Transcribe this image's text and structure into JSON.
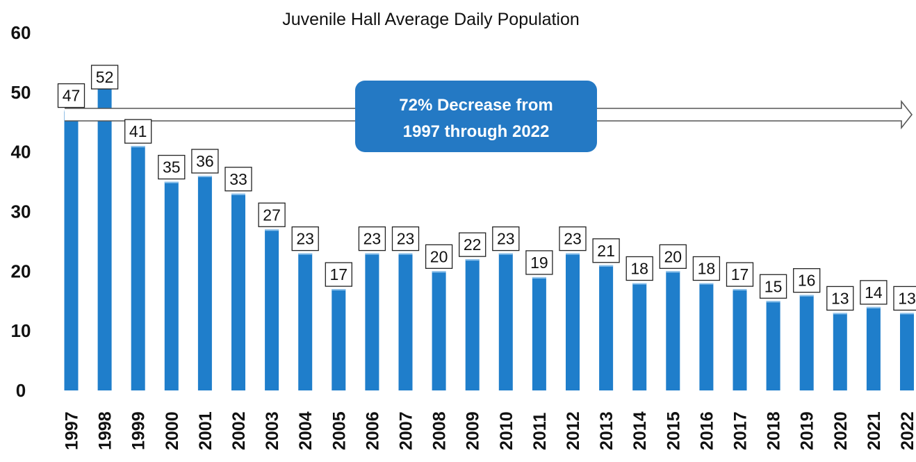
{
  "chart_data": {
    "type": "bar",
    "title": "Juvenile Hall Average Daily Population",
    "xlabel": "",
    "ylabel": "",
    "categories": [
      "1997",
      "1998",
      "1999",
      "2000",
      "2001",
      "2002",
      "2003",
      "2004",
      "2005",
      "2006",
      "2007",
      "2008",
      "2009",
      "2010",
      "2011",
      "2012",
      "2013",
      "2014",
      "2015",
      "2016",
      "2017",
      "2018",
      "2019",
      "2020",
      "2021",
      "2022"
    ],
    "values": [
      47,
      52,
      41,
      35,
      36,
      33,
      27,
      23,
      17,
      23,
      23,
      20,
      22,
      23,
      19,
      23,
      21,
      18,
      20,
      18,
      17,
      15,
      16,
      13,
      14,
      13
    ],
    "ylim": [
      0,
      60
    ],
    "yticks": [
      0,
      10,
      20,
      30,
      40,
      50,
      60
    ],
    "grid": false,
    "legend": "none",
    "bar_color": "#1f7ecb",
    "annotation": {
      "line1": "72% Decrease from",
      "line2": "1997 through 2022",
      "box_color": "#2479c4",
      "text_color": "#ffffff"
    }
  }
}
